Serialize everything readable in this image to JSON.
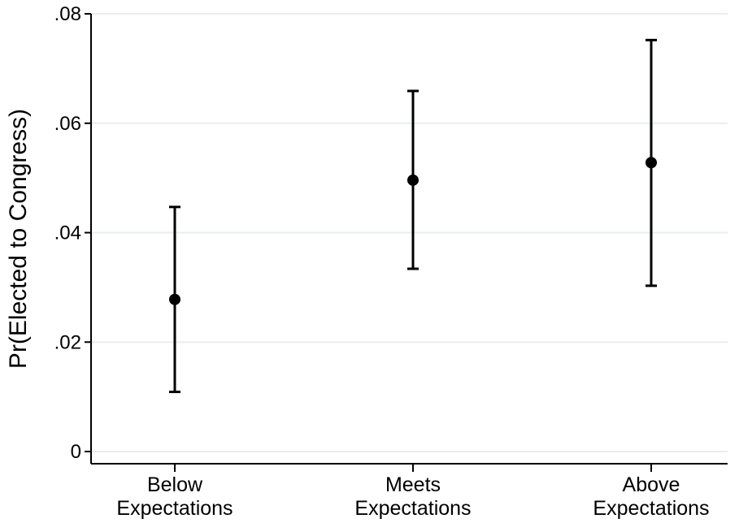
{
  "chart_data": {
    "type": "scatter",
    "subtype": "point estimates with confidence intervals",
    "title": "",
    "xlabel": "",
    "ylabel": "Pr(Elected to Congress)",
    "ylim": [
      0,
      0.08
    ],
    "yticks": [
      0,
      0.02,
      0.04,
      0.06,
      0.08
    ],
    "ytick_labels": [
      "0",
      ".02",
      ".04",
      ".06",
      ".08"
    ],
    "grid": true,
    "legend": "none",
    "categories": [
      [
        "Below",
        "Expectations"
      ],
      [
        "Meets",
        "Expectations"
      ],
      [
        "Above",
        "Expectations"
      ]
    ],
    "series": [
      {
        "values": [
          0.0278,
          0.0496,
          0.0528
        ],
        "ci_low": [
          0.0109,
          0.0334,
          0.0303
        ],
        "ci_high": [
          0.0447,
          0.0659,
          0.0752
        ]
      }
    ],
    "colors": {
      "marker": "#000000",
      "errorbar": "#000000",
      "grid": "#e8edf0",
      "axis": "#000000"
    }
  }
}
